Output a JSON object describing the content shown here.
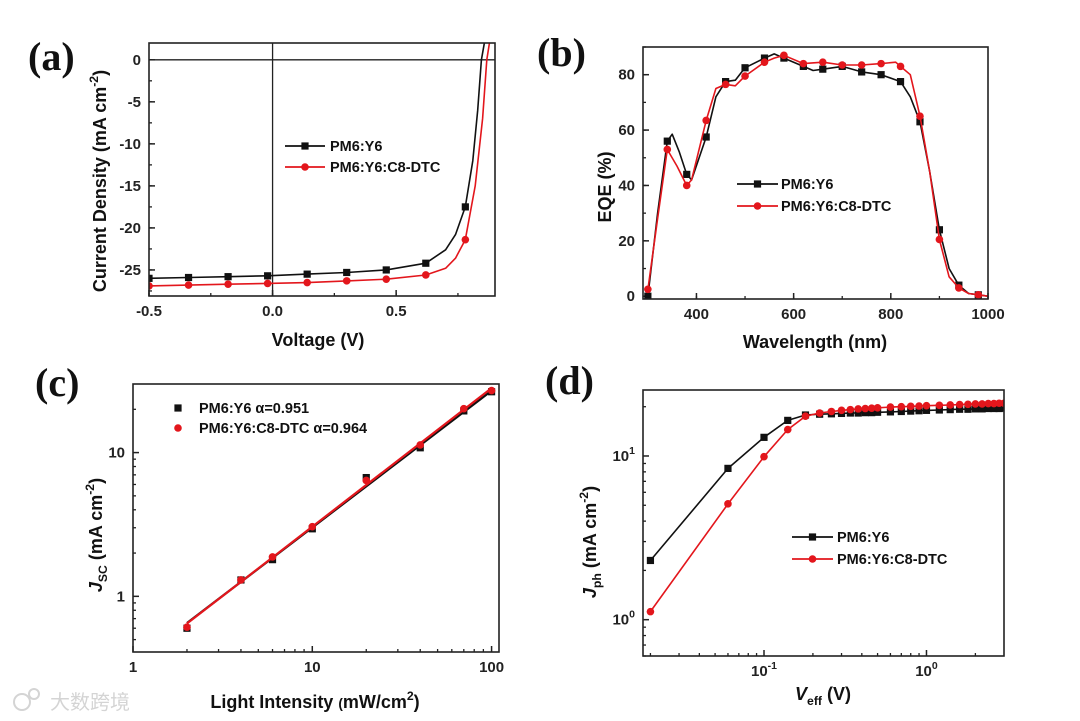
{
  "watermark": "大数跨境",
  "colors": {
    "black": "#111111",
    "red": "#e3161c"
  },
  "chart_data": [
    {
      "panel": "(a)",
      "type": "line",
      "xscale": "linear",
      "yscale": "linear",
      "xlim": [
        -0.5,
        0.9
      ],
      "ylim": [
        -28.1,
        2.0
      ],
      "xlabel": [
        {
          "t": "Voltage (V)"
        }
      ],
      "ylabel": [
        {
          "t": "Current Density (mA cm"
        },
        {
          "t": "-2",
          "sup": true
        },
        {
          "t": ")"
        }
      ],
      "xticks": [
        {
          "v": -0.5,
          "l": "-0.5"
        },
        {
          "v": 0.0,
          "l": "0.0"
        },
        {
          "v": 0.5,
          "l": "0.5"
        }
      ],
      "yticks": [
        {
          "v": 0,
          "l": "0"
        },
        {
          "v": -5,
          "l": "-5"
        },
        {
          "v": -10,
          "l": "-10"
        },
        {
          "v": -15,
          "l": "-15"
        },
        {
          "v": -20,
          "l": "-20"
        },
        {
          "v": -25,
          "l": "-25"
        }
      ],
      "xminor": 0.25,
      "yminor": 2.5,
      "zero_lines": true,
      "series": [
        {
          "name": "PM6:Y6",
          "legend": "PM6:Y6",
          "color": "#111111",
          "marker": "square",
          "x": [
            -0.5,
            -0.34,
            -0.18,
            -0.02,
            0.14,
            0.3,
            0.46,
            0.62,
            0.7,
            0.74,
            0.78,
            0.81,
            0.83,
            0.845,
            0.86
          ],
          "y": [
            -26.0,
            -25.9,
            -25.8,
            -25.7,
            -25.5,
            -25.3,
            -25.0,
            -24.2,
            -22.6,
            -20.8,
            -17.5,
            -12.0,
            -6.0,
            0.0,
            2.5
          ],
          "marker_idx": [
            0,
            1,
            2,
            3,
            4,
            5,
            6,
            7,
            10
          ]
        },
        {
          "name": "PM6:Y6:C8-DTC",
          "legend": "PM6:Y6:C8-DTC",
          "color": "#e3161c",
          "marker": "circle",
          "x": [
            -0.5,
            -0.34,
            -0.18,
            -0.02,
            0.14,
            0.3,
            0.46,
            0.62,
            0.7,
            0.74,
            0.78,
            0.82,
            0.85,
            0.867,
            0.88
          ],
          "y": [
            -26.9,
            -26.8,
            -26.7,
            -26.6,
            -26.5,
            -26.3,
            -26.1,
            -25.6,
            -24.8,
            -23.6,
            -21.4,
            -15.0,
            -7.0,
            0.0,
            2.5
          ],
          "marker_idx": [
            0,
            1,
            2,
            3,
            4,
            5,
            6,
            7,
            10
          ]
        }
      ],
      "legend_placement": "center-right"
    },
    {
      "panel": "(b)",
      "type": "line",
      "xscale": "linear",
      "yscale": "linear",
      "xlim": [
        290,
        1000
      ],
      "ylim": [
        -1,
        90
      ],
      "xlabel": [
        {
          "t": "Wavelength (nm)"
        }
      ],
      "ylabel": [
        {
          "t": "EQE (%)"
        }
      ],
      "xticks": [
        {
          "v": 400,
          "l": "400"
        },
        {
          "v": 600,
          "l": "600"
        },
        {
          "v": 800,
          "l": "800"
        },
        {
          "v": 1000,
          "l": "1000"
        }
      ],
      "yticks": [
        {
          "v": 0,
          "l": "0"
        },
        {
          "v": 20,
          "l": "20"
        },
        {
          "v": 40,
          "l": "40"
        },
        {
          "v": 60,
          "l": "60"
        },
        {
          "v": 80,
          "l": "80"
        }
      ],
      "xminor": 100,
      "yminor": 10,
      "series": [
        {
          "name": "PM6:Y6",
          "legend": "PM6:Y6",
          "color": "#111111",
          "marker": "square",
          "x": [
            300,
            320,
            340,
            350,
            365,
            380,
            390,
            420,
            440,
            460,
            480,
            500,
            540,
            560,
            580,
            620,
            640,
            660,
            700,
            740,
            780,
            820,
            840,
            860,
            880,
            900,
            920,
            940,
            960,
            980,
            1000
          ],
          "y": [
            0,
            30,
            56,
            58.5,
            52,
            44,
            42,
            57.5,
            72,
            77.5,
            78,
            82.5,
            86,
            87.5,
            86,
            83,
            81.5,
            82,
            83,
            81,
            80,
            77.5,
            72,
            63,
            45,
            24,
            10,
            4,
            1,
            0.5,
            0
          ],
          "marker_idx": [
            0,
            2,
            5,
            7,
            9,
            11,
            12,
            14,
            15,
            17,
            18,
            19,
            20,
            21,
            23,
            25,
            27,
            29
          ]
        },
        {
          "name": "PM6:Y6:C8-DTC",
          "legend": "PM6:Y6:C8-DTC",
          "color": "#e3161c",
          "marker": "circle",
          "x": [
            300,
            320,
            340,
            360,
            380,
            390,
            420,
            440,
            460,
            480,
            500,
            540,
            560,
            580,
            620,
            660,
            700,
            740,
            780,
            810,
            820,
            840,
            860,
            880,
            900,
            920,
            940,
            960,
            980,
            1000
          ],
          "y": [
            2.5,
            28,
            53,
            47,
            40,
            42,
            63.5,
            75,
            76.5,
            76,
            79.5,
            84.5,
            86,
            87,
            84,
            84.5,
            83.5,
            83.5,
            84,
            84.5,
            83,
            80,
            65,
            45,
            20.5,
            7,
            3,
            1,
            0.5,
            0
          ],
          "marker_idx": [
            0,
            2,
            4,
            6,
            8,
            10,
            11,
            13,
            14,
            15,
            16,
            17,
            18,
            20,
            22,
            24,
            26,
            28
          ]
        }
      ],
      "legend_placement": "center-right"
    },
    {
      "panel": "(c)",
      "type": "scatter",
      "xscale": "log",
      "yscale": "log",
      "xlim": [
        1,
        110
      ],
      "ylim": [
        0.41,
        30
      ],
      "xlabel": [
        {
          "t": "Light Intensity "
        },
        {
          "t": "(",
          "small": true
        },
        {
          "t": "mW/cm"
        },
        {
          "t": "2",
          "sup": true
        },
        {
          "t": ")"
        }
      ],
      "ylabel": [
        {
          "t": "J",
          "italic": true
        },
        {
          "t": "SC",
          "sub": true
        },
        {
          "t": " (mA cm"
        },
        {
          "t": "-2",
          "sup": true
        },
        {
          "t": ")"
        }
      ],
      "xticks": [
        {
          "v": 1,
          "l": "1"
        },
        {
          "v": 10,
          "l": "10"
        },
        {
          "v": 100,
          "l": "100"
        }
      ],
      "yticks": [
        {
          "v": 1,
          "l": "1"
        },
        {
          "v": 10,
          "l": "10"
        }
      ],
      "series": [
        {
          "name": "PM6:Y6",
          "legend": "PM6:Y6 α=0.951",
          "alpha": 0.951,
          "color": "#111111",
          "marker": "square",
          "x": [
            2,
            4,
            6,
            10,
            20,
            40,
            70,
            100
          ],
          "y": [
            0.6,
            1.3,
            1.8,
            2.95,
            6.7,
            10.8,
            19.5,
            26.5
          ]
        },
        {
          "name": "PM6:Y6:C8-DTC",
          "legend": "PM6:Y6:C8-DTC α=0.964",
          "alpha": 0.964,
          "color": "#e3161c",
          "marker": "circle",
          "x": [
            2,
            4,
            6,
            10,
            20,
            40,
            70,
            100
          ],
          "y": [
            0.61,
            1.3,
            1.88,
            3.05,
            6.4,
            11.3,
            20.2,
            27.0
          ]
        }
      ],
      "legend_placement": "top-left"
    },
    {
      "panel": "(d)",
      "type": "line",
      "xscale": "log",
      "yscale": "log",
      "xlim": [
        0.018,
        3.0
      ],
      "ylim": [
        0.6,
        25.3
      ],
      "xlabel": [
        {
          "t": "V",
          "italic": true
        },
        {
          "t": "eff",
          "sub": true
        },
        {
          "t": " (V)"
        }
      ],
      "ylabel": [
        {
          "t": "J",
          "italic": true
        },
        {
          "t": "ph",
          "sub": true
        },
        {
          "t": " (mA cm"
        },
        {
          "t": "-2",
          "sup": true
        },
        {
          "t": ")"
        }
      ],
      "xticks": [
        {
          "v": 0.1,
          "base": "10",
          "exp": "-1"
        },
        {
          "v": 1,
          "base": "10",
          "exp": "0"
        }
      ],
      "yticks": [
        {
          "v": 1,
          "base": "10",
          "exp": "0"
        },
        {
          "v": 10,
          "base": "10",
          "exp": "1"
        }
      ],
      "series": [
        {
          "name": "PM6:Y6",
          "legend": "PM6:Y6",
          "color": "#111111",
          "marker": "square",
          "x": [
            0.02,
            0.06,
            0.1,
            0.14,
            0.18,
            0.22,
            0.26,
            0.3,
            0.34,
            0.38,
            0.42,
            0.46,
            0.5,
            0.6,
            0.7,
            0.8,
            0.9,
            1.0,
            1.2,
            1.4,
            1.6,
            1.8,
            2.0,
            2.2,
            2.4,
            2.6,
            2.8,
            3.0
          ],
          "y": [
            2.3,
            8.4,
            13.0,
            16.5,
            17.8,
            18.0,
            18.1,
            18.2,
            18.3,
            18.3,
            18.4,
            18.4,
            18.5,
            18.6,
            18.7,
            18.8,
            18.9,
            19.0,
            19.1,
            19.2,
            19.3,
            19.3,
            19.4,
            19.4,
            19.5,
            19.5,
            19.5,
            19.6
          ]
        },
        {
          "name": "PM6:Y6:C8-DTC",
          "legend": "PM6:Y6:C8-DTC",
          "color": "#e3161c",
          "marker": "circle",
          "x": [
            0.02,
            0.06,
            0.1,
            0.14,
            0.18,
            0.22,
            0.26,
            0.3,
            0.34,
            0.38,
            0.42,
            0.46,
            0.5,
            0.6,
            0.7,
            0.8,
            0.9,
            1.0,
            1.2,
            1.4,
            1.6,
            1.8,
            2.0,
            2.2,
            2.4,
            2.6,
            2.8,
            3.0
          ],
          "y": [
            1.12,
            5.1,
            9.9,
            14.5,
            17.5,
            18.3,
            18.7,
            19.0,
            19.2,
            19.4,
            19.5,
            19.6,
            19.7,
            19.9,
            20.0,
            20.1,
            20.2,
            20.3,
            20.4,
            20.5,
            20.6,
            20.7,
            20.8,
            20.8,
            20.9,
            20.9,
            21.0,
            21.0
          ]
        }
      ],
      "legend_placement": "center-right"
    }
  ]
}
